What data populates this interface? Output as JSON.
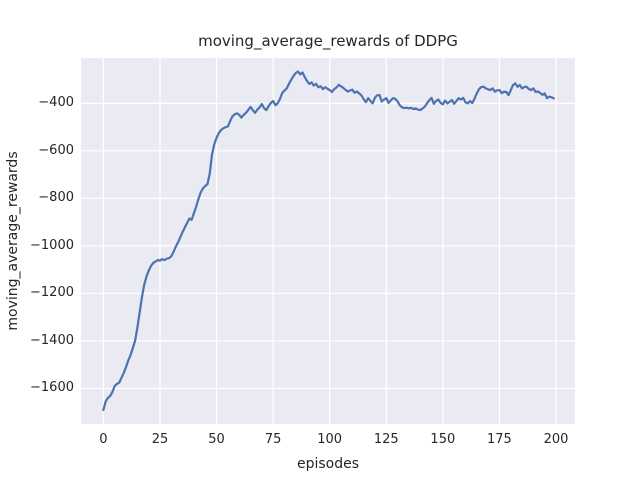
{
  "chart_data": {
    "type": "line",
    "title": "moving_average_rewards of DDPG",
    "xlabel": "episodes",
    "ylabel": "moving_average_rewards",
    "xlim": [
      -9.9,
      208.4
    ],
    "ylim": [
      -1750,
      -209
    ],
    "xticks": [
      0,
      25,
      50,
      75,
      100,
      125,
      150,
      175,
      200
    ],
    "yticks": [
      -400,
      -600,
      -800,
      -1000,
      -1200,
      -1400,
      -1600
    ],
    "xtick_labels": [
      "0",
      "25",
      "50",
      "75",
      "100",
      "125",
      "150",
      "175",
      "200"
    ],
    "ytick_labels": [
      "−400",
      "−600",
      "−800",
      "−1000",
      "−1200",
      "−1400",
      "−1600"
    ],
    "grid": true,
    "legend": "none",
    "style": {
      "axes_background": "#EAEAF2",
      "grid_color": "#FFFFFF",
      "line_color": "#4C72B0",
      "text_color": "#262626",
      "figure_background": "#FFFFFF"
    },
    "series": [
      {
        "name": "moving_average_rewards",
        "x": [
          0,
          1,
          2,
          3,
          4,
          5,
          6,
          7,
          8,
          9,
          10,
          11,
          12,
          13,
          14,
          15,
          16,
          17,
          18,
          19,
          20,
          21,
          22,
          23,
          24,
          25,
          26,
          27,
          28,
          29,
          30,
          31,
          32,
          33,
          34,
          35,
          36,
          37,
          38,
          39,
          40,
          41,
          42,
          43,
          44,
          45,
          46,
          47,
          48,
          49,
          50,
          51,
          52,
          53,
          54,
          55,
          56,
          57,
          58,
          59,
          60,
          61,
          62,
          63,
          64,
          65,
          66,
          67,
          68,
          69,
          70,
          71,
          72,
          73,
          74,
          75,
          76,
          77,
          78,
          79,
          80,
          81,
          82,
          83,
          84,
          85,
          86,
          87,
          88,
          89,
          90,
          91,
          92,
          93,
          94,
          95,
          96,
          97,
          98,
          99,
          100,
          101,
          102,
          103,
          104,
          105,
          106,
          107,
          108,
          109,
          110,
          111,
          112,
          113,
          114,
          115,
          116,
          117,
          118,
          119,
          120,
          121,
          122,
          123,
          124,
          125,
          126,
          127,
          128,
          129,
          130,
          131,
          132,
          133,
          134,
          135,
          136,
          137,
          138,
          139,
          140,
          141,
          142,
          143,
          144,
          145,
          146,
          147,
          148,
          149,
          150,
          151,
          152,
          153,
          154,
          155,
          156,
          157,
          158,
          159,
          160,
          161,
          162,
          163,
          164,
          165,
          166,
          167,
          168,
          169,
          170,
          171,
          172,
          173,
          174,
          175,
          176,
          177,
          178,
          179,
          180,
          181,
          182,
          183,
          184,
          185,
          186,
          187,
          188,
          189,
          190,
          191,
          192,
          193,
          194,
          195,
          196,
          197,
          198,
          199
        ],
        "y": [
          -1691,
          -1655,
          -1640,
          -1632,
          -1615,
          -1590,
          -1581,
          -1576,
          -1555,
          -1535,
          -1510,
          -1482,
          -1460,
          -1430,
          -1400,
          -1345,
          -1282,
          -1218,
          -1165,
          -1130,
          -1105,
          -1085,
          -1072,
          -1066,
          -1060,
          -1062,
          -1056,
          -1060,
          -1054,
          -1052,
          -1044,
          -1025,
          -1003,
          -985,
          -963,
          -942,
          -922,
          -903,
          -885,
          -890,
          -862,
          -835,
          -802,
          -775,
          -758,
          -748,
          -740,
          -695,
          -615,
          -572,
          -545,
          -525,
          -512,
          -505,
          -500,
          -497,
          -475,
          -455,
          -446,
          -442,
          -448,
          -460,
          -448,
          -440,
          -428,
          -415,
          -428,
          -440,
          -427,
          -417,
          -403,
          -420,
          -428,
          -412,
          -398,
          -390,
          -408,
          -400,
          -382,
          -357,
          -346,
          -337,
          -318,
          -300,
          -285,
          -272,
          -266,
          -278,
          -270,
          -290,
          -306,
          -318,
          -312,
          -325,
          -318,
          -332,
          -328,
          -340,
          -332,
          -338,
          -344,
          -352,
          -340,
          -333,
          -322,
          -328,
          -335,
          -343,
          -350,
          -346,
          -342,
          -355,
          -350,
          -358,
          -366,
          -382,
          -395,
          -378,
          -390,
          -400,
          -376,
          -366,
          -365,
          -392,
          -384,
          -378,
          -398,
          -388,
          -378,
          -381,
          -392,
          -408,
          -417,
          -420,
          -418,
          -421,
          -419,
          -424,
          -421,
          -426,
          -428,
          -422,
          -414,
          -400,
          -387,
          -377,
          -402,
          -390,
          -384,
          -398,
          -404,
          -388,
          -400,
          -393,
          -386,
          -402,
          -390,
          -378,
          -384,
          -377,
          -396,
          -400,
          -390,
          -399,
          -380,
          -358,
          -340,
          -331,
          -330,
          -337,
          -341,
          -344,
          -337,
          -351,
          -345,
          -344,
          -357,
          -351,
          -352,
          -365,
          -345,
          -323,
          -316,
          -330,
          -323,
          -337,
          -331,
          -330,
          -340,
          -344,
          -337,
          -352,
          -350,
          -356,
          -364,
          -358,
          -378,
          -372,
          -374,
          -379
        ]
      }
    ]
  }
}
